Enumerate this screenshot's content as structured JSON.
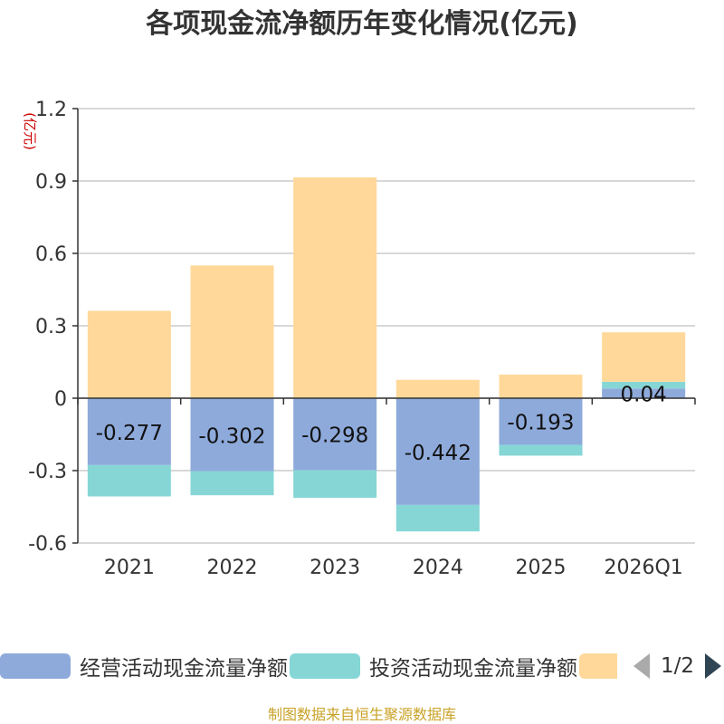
{
  "chart_data": {
    "type": "bar",
    "title": "各项现金流净额历年变化情况(亿元)",
    "ylabel": "(亿元)",
    "ylim": [
      -0.6,
      1.2
    ],
    "yticks": [
      "1.2",
      "0.9",
      "0.6",
      "0.3",
      "0",
      "-0.3",
      "-0.6"
    ],
    "ytick_values": [
      1.2,
      0.9,
      0.6,
      0.3,
      0,
      -0.3,
      -0.6
    ],
    "categories": [
      "2021",
      "2022",
      "2023",
      "2024",
      "2025",
      "2026Q1"
    ],
    "stacked": true,
    "series": [
      {
        "name": "经营活动现金流量净额",
        "color": "#8eaadb",
        "values": [
          -0.277,
          -0.302,
          -0.298,
          -0.442,
          -0.193,
          0.04
        ],
        "labels": [
          "-0.277",
          "-0.302",
          "-0.298",
          "-0.442",
          "-0.193",
          "0.04"
        ]
      },
      {
        "name": "投资活动现金流量净额",
        "color": "#86d6d6",
        "values": [
          -0.13,
          -0.1,
          -0.115,
          -0.11,
          -0.045,
          0.028
        ]
      },
      {
        "name": "",
        "color": "#ffd89a",
        "values": [
          0.362,
          0.55,
          0.915,
          0.076,
          0.098,
          0.205
        ]
      }
    ],
    "grid": true,
    "legend_position": "bottom"
  },
  "legend": {
    "items": [
      {
        "label": "经营活动现金流量净额",
        "color": "#8eaadb"
      },
      {
        "label": "投资活动现金流量净额",
        "color": "#86d6d6"
      },
      {
        "label": "",
        "color": "#ffd89a"
      }
    ],
    "page_info": "1/2"
  },
  "source": "制图数据来自恒生聚源数据库"
}
